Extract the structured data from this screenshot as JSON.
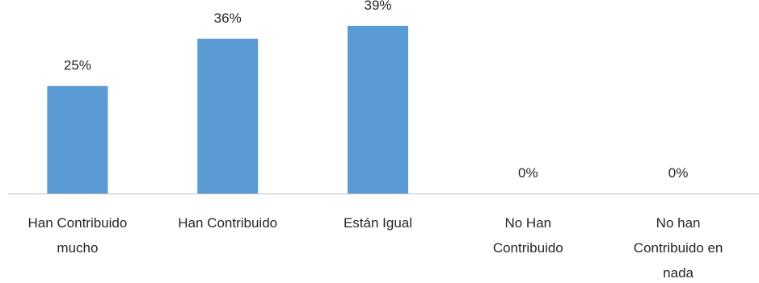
{
  "chart_data": {
    "type": "bar",
    "categories": [
      "Han Contribuido mucho",
      "Han Contribuido",
      "Están Igual",
      "No Han Contribuido",
      "No han Contribuido en nada"
    ],
    "category_label_lines": [
      [
        "Han Contribuido",
        "mucho"
      ],
      [
        "Han Contribuido"
      ],
      [
        "Están Igual"
      ],
      [
        "No Han",
        "Contribuido"
      ],
      [
        "No han",
        "Contribuido en",
        "nada"
      ]
    ],
    "values": [
      25,
      36,
      39,
      0,
      0
    ],
    "data_labels": [
      "25%",
      "36%",
      "39%",
      "0%",
      "0%"
    ],
    "unit": "%",
    "ylim": [
      0,
      45
    ],
    "grid": false,
    "legend": "none",
    "colors": {
      "bar": "#5b9bd5",
      "axis": "#bfbfbf",
      "text": "#262626"
    }
  }
}
